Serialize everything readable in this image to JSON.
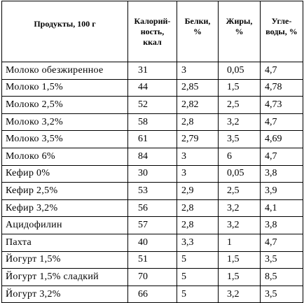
{
  "table": {
    "headers": {
      "product": "Продукты, 100 г",
      "calories": [
        "Калорий-",
        "ность,",
        "ккал"
      ],
      "protein": [
        "Белки,",
        "%"
      ],
      "fat": [
        "Жиры,",
        "%"
      ],
      "carbs": [
        "Угле-",
        "воды, %"
      ]
    },
    "rows": [
      {
        "product": "Молоко обезжиренное",
        "calories": "31",
        "protein": "3",
        "fat": "0,05",
        "carbs": "4,7"
      },
      {
        "product": "Молоко 1,5%",
        "calories": "44",
        "protein": "2,85",
        "fat": "1,5",
        "carbs": "4,78"
      },
      {
        "product": "Молоко 2,5%",
        "calories": "52",
        "protein": "2,82",
        "fat": "2,5",
        "carbs": "4,73"
      },
      {
        "product": "Молоко 3,2%",
        "calories": "58",
        "protein": "2,8",
        "fat": "3,2",
        "carbs": "4,7"
      },
      {
        "product": "Молоко 3,5%",
        "calories": "61",
        "protein": "2,79",
        "fat": "3,5",
        "carbs": "4,69"
      },
      {
        "product": "Молоко 6%",
        "calories": "84",
        "protein": "3",
        "fat": "6",
        "carbs": "4,7"
      },
      {
        "product": "Кефир 0%",
        "calories": "30",
        "protein": "3",
        "fat": "0,05",
        "carbs": "3,8"
      },
      {
        "product": "Кефир 2,5%",
        "calories": "53",
        "protein": "2,9",
        "fat": "2,5",
        "carbs": "3,9"
      },
      {
        "product": "Кефир 3,2%",
        "calories": "56",
        "protein": "2,8",
        "fat": "3,2",
        "carbs": "4,1"
      },
      {
        "product": "Ацидофилин",
        "calories": "57",
        "protein": "2,8",
        "fat": "3,2",
        "carbs": "3,8"
      },
      {
        "product": "Пахта",
        "calories": "40",
        "protein": "3,3",
        "fat": "1",
        "carbs": "4,7"
      },
      {
        "product": "Йогурт 1,5%",
        "calories": "51",
        "protein": "5",
        "fat": "1,5",
        "carbs": "3,5"
      },
      {
        "product": "Йогурт 1,5% сладкий",
        "calories": "70",
        "protein": "5",
        "fat": "1,5",
        "carbs": "8,5"
      },
      {
        "product": "Йогурт 3,2%",
        "calories": "66",
        "protein": "5",
        "fat": "3,2",
        "carbs": "3,5"
      }
    ]
  }
}
